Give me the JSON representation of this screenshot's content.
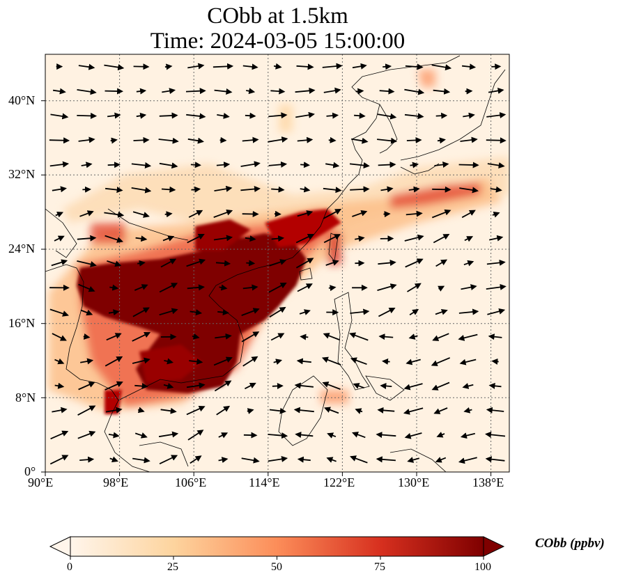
{
  "title": {
    "line1": "CObb at 1.5km",
    "line2": "Time: 2024-03-05 15:00:00"
  },
  "map": {
    "extent_lon": [
      90,
      140
    ],
    "extent_lat": [
      0,
      45
    ],
    "gridlines": true,
    "lon_ticks": [
      "90°E",
      "98°E",
      "106°E",
      "114°E",
      "122°E",
      "130°E",
      "138°E"
    ],
    "lat_ticks": [
      "0°",
      "8°N",
      "16°N",
      "24°N",
      "32°N",
      "40°N"
    ],
    "lon_tick_values": [
      90,
      98,
      106,
      114,
      122,
      130,
      138
    ],
    "lat_tick_values": [
      0,
      8,
      16,
      24,
      32,
      40
    ],
    "field_description": "CO biomass burning concentration with wind vectors",
    "colormap": [
      "#fff5eb",
      "#fdd49e",
      "#fc8d59",
      "#d7301f",
      "#7f0000"
    ]
  },
  "colorbar": {
    "label": "CObb (ppbv)",
    "ticks": [
      "0",
      "25",
      "50",
      "75",
      "100"
    ],
    "tick_values": [
      0,
      25,
      50,
      75,
      100
    ],
    "range": [
      0,
      100
    ],
    "extend": "both"
  }
}
